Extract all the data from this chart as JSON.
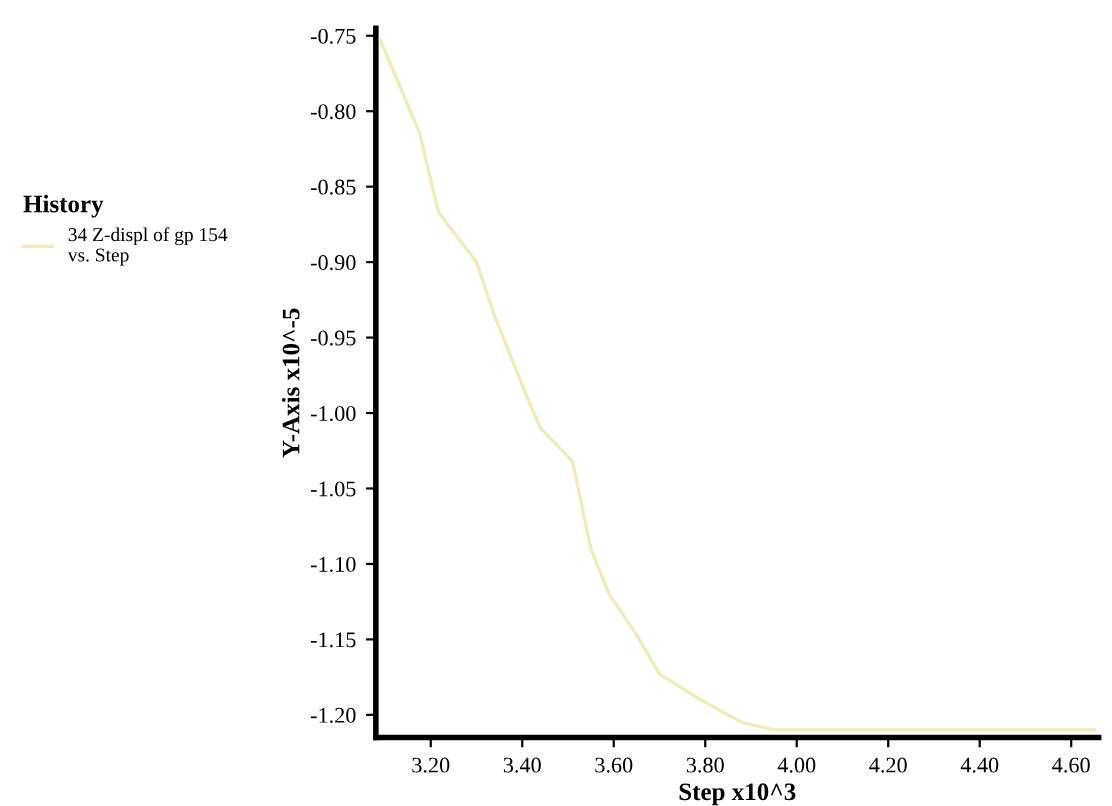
{
  "chart_data": {
    "type": "line",
    "xlabel": "Step x10^3",
    "ylabel": "Y-Axis x10^-5",
    "legend_title": "History",
    "series": [
      {
        "name": "34 Z-displ of gp 154\nvs. Step",
        "color": "#f2eab8",
        "x": [
          3.09,
          3.175,
          3.217,
          3.3,
          3.34,
          3.41,
          3.44,
          3.51,
          3.55,
          3.59,
          3.65,
          3.7,
          3.79,
          3.88,
          3.95,
          4.2,
          4.4,
          4.65
        ],
        "values": [
          -0.753,
          -0.814,
          -0.867,
          -0.9,
          -0.936,
          -0.989,
          -1.01,
          -1.032,
          -1.09,
          -1.12,
          -1.147,
          -1.173,
          -1.19,
          -1.205,
          -1.21,
          -1.21,
          -1.21,
          -1.21
        ]
      }
    ],
    "xlim": [
      3.08,
      4.66
    ],
    "xticks": [
      {
        "value": 3.2,
        "label": "3.20"
      },
      {
        "value": 3.4,
        "label": "3.40"
      },
      {
        "value": 3.6,
        "label": "3.60"
      },
      {
        "value": 3.8,
        "label": "3.80"
      },
      {
        "value": 4.0,
        "label": "4.00"
      },
      {
        "value": 4.2,
        "label": "4.20"
      },
      {
        "value": 4.4,
        "label": "4.40"
      },
      {
        "value": 4.6,
        "label": "4.60"
      }
    ],
    "ylim": [
      -1.215,
      -0.745
    ],
    "yticks": [
      {
        "value": -0.75,
        "label": "-0.75"
      },
      {
        "value": -0.8,
        "label": "-0.80"
      },
      {
        "value": -0.85,
        "label": "-0.85"
      },
      {
        "value": -0.9,
        "label": "-0.90"
      },
      {
        "value": -0.95,
        "label": "-0.95"
      },
      {
        "value": -1.0,
        "label": "-1.00"
      },
      {
        "value": -1.05,
        "label": "-1.05"
      },
      {
        "value": -1.1,
        "label": "-1.10"
      },
      {
        "value": -1.15,
        "label": "-1.15"
      },
      {
        "value": -1.2,
        "label": "-1.20"
      }
    ],
    "grid": false,
    "legend": "left",
    "marker": "none",
    "line_style": "solid"
  }
}
